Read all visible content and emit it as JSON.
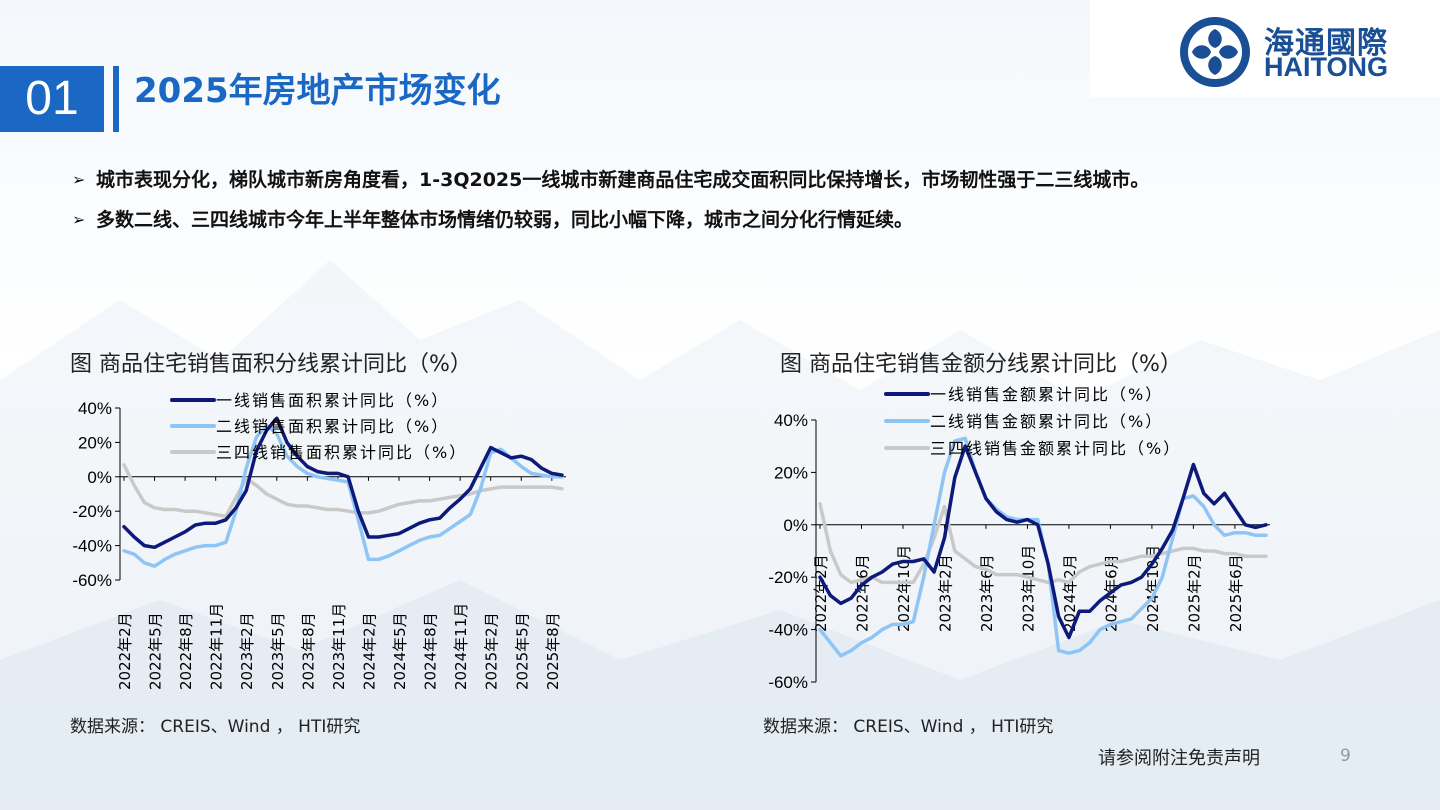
{
  "header": {
    "section_number": "01",
    "title": "2025年房地产市场变化",
    "logo_cn": "海通國際",
    "logo_en": "HAITONG"
  },
  "bullets": [
    "城市表现分化，梯队城市新房角度看，1-3Q2025一线城市新建商品住宅成交面积同比保持增长，市场韧性强于二三线城市。",
    "多数二线、三四线城市今年上半年整体市场情绪仍较弱，同比小幅下降，城市之间分化行情延续。"
  ],
  "colors": {
    "tier1": "#0d1a7a",
    "tier2": "#8ec5f5",
    "tier34": "#c9c9c9",
    "accent": "#1a68c4"
  },
  "chart_data": [
    {
      "type": "line",
      "title": "图  商品住宅销售面积分线累计同比（%）",
      "source": "数据来源：  CREIS、Wind ， HTI研究",
      "ylim": [
        -60,
        40
      ],
      "yticks": [
        "40%",
        "20%",
        "0%",
        "-20%",
        "-40%",
        "-60%"
      ],
      "ytick_values": [
        40,
        20,
        0,
        -20,
        -40,
        -60
      ],
      "x_labels": [
        "2022年2月",
        "2022年5月",
        "2022年8月",
        "2022年11月",
        "2023年2月",
        "2023年5月",
        "2023年8月",
        "2023年11月",
        "2024年2月",
        "2024年5月",
        "2024年8月",
        "2024年11月",
        "2025年2月",
        "2025年5月",
        "2025年8月"
      ],
      "x_label_index": [
        0,
        3,
        6,
        9,
        12,
        15,
        18,
        21,
        24,
        27,
        30,
        33,
        36,
        39,
        42
      ],
      "n_points": 44,
      "series": [
        {
          "name": "一线销售面积累计同比（%）",
          "color": "#0d1a7a",
          "values": [
            -29,
            -35,
            -40,
            -41,
            -38,
            -35,
            -32,
            -28,
            -27,
            -27,
            -25,
            -18,
            -8,
            15,
            27,
            34,
            20,
            12,
            6,
            3,
            2,
            2,
            0,
            -20,
            -35,
            -35,
            -34,
            -33,
            -30,
            -27,
            -25,
            -24,
            -18,
            -13,
            -7,
            5,
            17,
            14,
            11,
            12,
            10,
            5,
            2,
            1
          ]
        },
        {
          "name": "二线销售面积累计同比（%）",
          "color": "#8ec5f5",
          "values": [
            -43,
            -45,
            -50,
            -52,
            -48,
            -45,
            -43,
            -41,
            -40,
            -40,
            -38,
            -20,
            5,
            23,
            30,
            25,
            12,
            6,
            2,
            0,
            -1,
            -2,
            -3,
            -25,
            -48,
            -48,
            -46,
            -43,
            -40,
            -37,
            -35,
            -34,
            -30,
            -26,
            -22,
            -7,
            14,
            16,
            11,
            6,
            2,
            1,
            0,
            0
          ]
        },
        {
          "name": "三四线销售面积累计同比（%）",
          "color": "#c9c9c9",
          "values": [
            7,
            -5,
            -15,
            -18,
            -19,
            -19,
            -20,
            -20,
            -21,
            -22,
            -23,
            -12,
            -1,
            -5,
            -10,
            -13,
            -16,
            -17,
            -17,
            -18,
            -19,
            -19,
            -20,
            -21,
            -21,
            -20,
            -18,
            -16,
            -15,
            -14,
            -14,
            -13,
            -12,
            -11,
            -10,
            -8,
            -7,
            -6,
            -6,
            -6,
            -6,
            -6,
            -6,
            -7
          ]
        }
      ]
    },
    {
      "type": "line",
      "title": "图  商品住宅销售金额分线累计同比（%）",
      "source": "数据来源：  CREIS、Wind ， HTI研究",
      "ylim": [
        -60,
        40
      ],
      "yticks": [
        "40%",
        "20%",
        "0%",
        "-20%",
        "-40%",
        "-60%"
      ],
      "ytick_values": [
        40,
        20,
        0,
        -20,
        -40,
        -60
      ],
      "x_labels": [
        "2022年2月",
        "2022年6月",
        "2022年10月",
        "2023年2月",
        "2023年6月",
        "2023年10月",
        "2024年2月",
        "2024年6月",
        "2024年10月",
        "2025年2月",
        "2025年6月"
      ],
      "x_label_index": [
        0,
        4,
        8,
        12,
        16,
        20,
        24,
        28,
        32,
        36,
        40
      ],
      "n_points": 44,
      "series": [
        {
          "name": "一线销售金额累计同比（%）",
          "color": "#0d1a7a",
          "values": [
            -20,
            -27,
            -30,
            -28,
            -23,
            -20,
            -18,
            -15,
            -14,
            -14,
            -13,
            -18,
            -5,
            18,
            30,
            20,
            10,
            5,
            2,
            1,
            2,
            0,
            -15,
            -35,
            -43,
            -33,
            -33,
            -29,
            -26,
            -23,
            -22,
            -20,
            -15,
            -9,
            -2,
            10,
            23,
            12,
            8,
            12,
            6,
            0,
            -1,
            0
          ]
        },
        {
          "name": "二线销售金额累计同比（%）",
          "color": "#8ec5f5",
          "values": [
            -40,
            -45,
            -50,
            -48,
            -45,
            -43,
            -40,
            -38,
            -38,
            -37,
            -20,
            0,
            20,
            32,
            33,
            20,
            10,
            6,
            3,
            2,
            2,
            2,
            -15,
            -48,
            -49,
            -48,
            -45,
            -40,
            -38,
            -37,
            -36,
            -32,
            -28,
            -20,
            -5,
            10,
            11,
            7,
            0,
            -4,
            -3,
            -3,
            -4,
            -4
          ]
        },
        {
          "name": "三四线销售金额累计同比（%）",
          "color": "#c9c9c9",
          "values": [
            8,
            -10,
            -19,
            -22,
            -21,
            -20,
            -22,
            -22,
            -22,
            -22,
            -15,
            -5,
            7,
            -10,
            -13,
            -16,
            -17,
            -19,
            -19,
            -19,
            -20,
            -21,
            -22,
            -21,
            -22,
            -18,
            -16,
            -15,
            -14,
            -14,
            -13,
            -12,
            -12,
            -11,
            -10,
            -9,
            -9,
            -10,
            -10,
            -11,
            -11,
            -12,
            -12,
            -12
          ]
        }
      ]
    }
  ],
  "footer": {
    "disclaimer": "请参阅附注免责声明",
    "page": "9"
  }
}
